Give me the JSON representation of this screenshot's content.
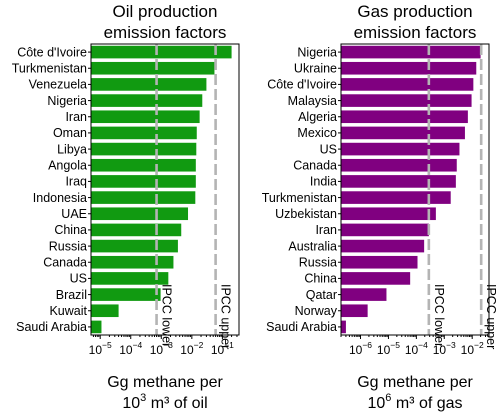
{
  "chart_data": [
    {
      "type": "bar",
      "orientation": "horizontal",
      "title": "Oil production\nemission factors",
      "xlabel_line1": "Gg methane per",
      "xlabel_line2_pre": "10",
      "xlabel_line2_sup": "3",
      "xlabel_line2_post": " m³ of oil",
      "xscale": "log",
      "xlim": [
        5e-06,
        0.35
      ],
      "xtick_exponents": [
        -5,
        -4,
        -3,
        -2,
        -1
      ],
      "bar_color": "#119a11",
      "ref_line_color": "#b4b4b4",
      "categories": [
        "Côte d'Ivoire",
        "Turkmenistan",
        "Venezuela",
        "Nigeria",
        "Iran",
        "Oman",
        "Libya",
        "Angola",
        "Iraq",
        "Indonesia",
        "UAE",
        "China",
        "Russia",
        "Canada",
        "US",
        "Brazil",
        "Kuwait",
        "Saudi Arabia"
      ],
      "values": [
        0.2,
        0.055,
        0.03,
        0.022,
        0.018,
        0.0145,
        0.014,
        0.0135,
        0.0135,
        0.013,
        0.0075,
        0.0045,
        0.0035,
        0.0025,
        0.0017,
        0.00095,
        4e-05,
        1.1e-05
      ],
      "reference_lines": [
        {
          "label": "IPCC lower",
          "value": 0.0007
        },
        {
          "label": "IPCC upper",
          "value": 0.06
        }
      ]
    },
    {
      "type": "bar",
      "orientation": "horizontal",
      "title": "Gas production\nemission factors",
      "xlabel_line1": "Gg methane per",
      "xlabel_line2_pre": "10",
      "xlabel_line2_sup": "6",
      "xlabel_line2_post": " m³ of gas",
      "xscale": "log",
      "xlim": [
        2e-07,
        0.04
      ],
      "xtick_exponents": [
        -6,
        -5,
        -4,
        -3,
        -2
      ],
      "bar_color": "#800080",
      "ref_line_color": "#b4b4b4",
      "categories": [
        "Nigeria",
        "Ukraine",
        "Côte d'Ivoire",
        "Malaysia",
        "Algeria",
        "Mexico",
        "US",
        "Canada",
        "India",
        "Turkmenistan",
        "Uzbekistan",
        "Iran",
        "Australia",
        "Russia",
        "China",
        "Qatar",
        "Norway",
        "Saudi Arabia"
      ],
      "values": [
        0.02,
        0.014,
        0.011,
        0.0095,
        0.007,
        0.0055,
        0.0035,
        0.0028,
        0.0026,
        0.0017,
        0.0005,
        0.00028,
        0.00019,
        0.00011,
        6e-05,
        8.5e-06,
        1.8e-06,
        3e-07
      ],
      "reference_lines": [
        {
          "label": "IPCC lower",
          "value": 0.00028
        },
        {
          "label": "IPCC upper",
          "value": 0.021
        }
      ]
    }
  ]
}
